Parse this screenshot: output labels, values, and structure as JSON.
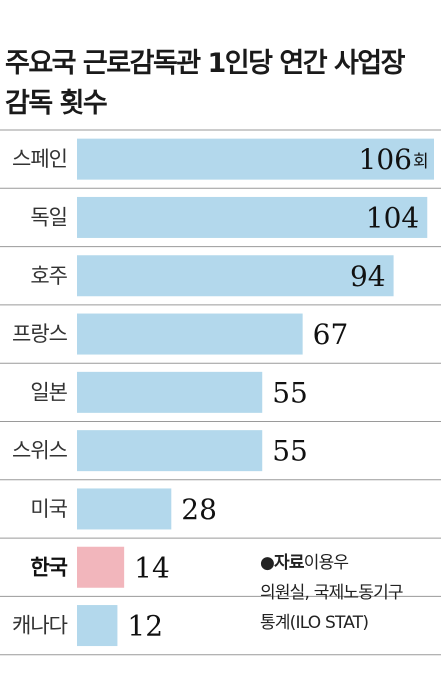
{
  "title": "주요국 근로감독관 1인당 연간 사업장\n감독 횟수",
  "source": {
    "bullet": "●",
    "label": "자료",
    "line1": "이용우",
    "line2": "의원실, 국제노동기구",
    "line3": "통계(ILO STAT)"
  },
  "colors": {
    "bar": "#b3d8ec",
    "highlight": "#f2b6bc",
    "divider": "#9a9a9a"
  },
  "chart_data": {
    "type": "bar",
    "orientation": "horizontal",
    "title": "주요국 근로감독관 1인당 연간 사업장 감독 횟수",
    "categories": [
      "스페인",
      "독일",
      "호주",
      "프랑스",
      "일본",
      "스위스",
      "미국",
      "한국",
      "캐나다"
    ],
    "values": [
      106,
      104,
      94,
      67,
      55,
      55,
      28,
      14,
      12
    ],
    "value_labels": [
      "106",
      "104",
      "94",
      "67",
      "55",
      "55",
      "28",
      "14",
      "12"
    ],
    "unit": "회",
    "highlight": "한국",
    "xlim": [
      0,
      106
    ]
  }
}
